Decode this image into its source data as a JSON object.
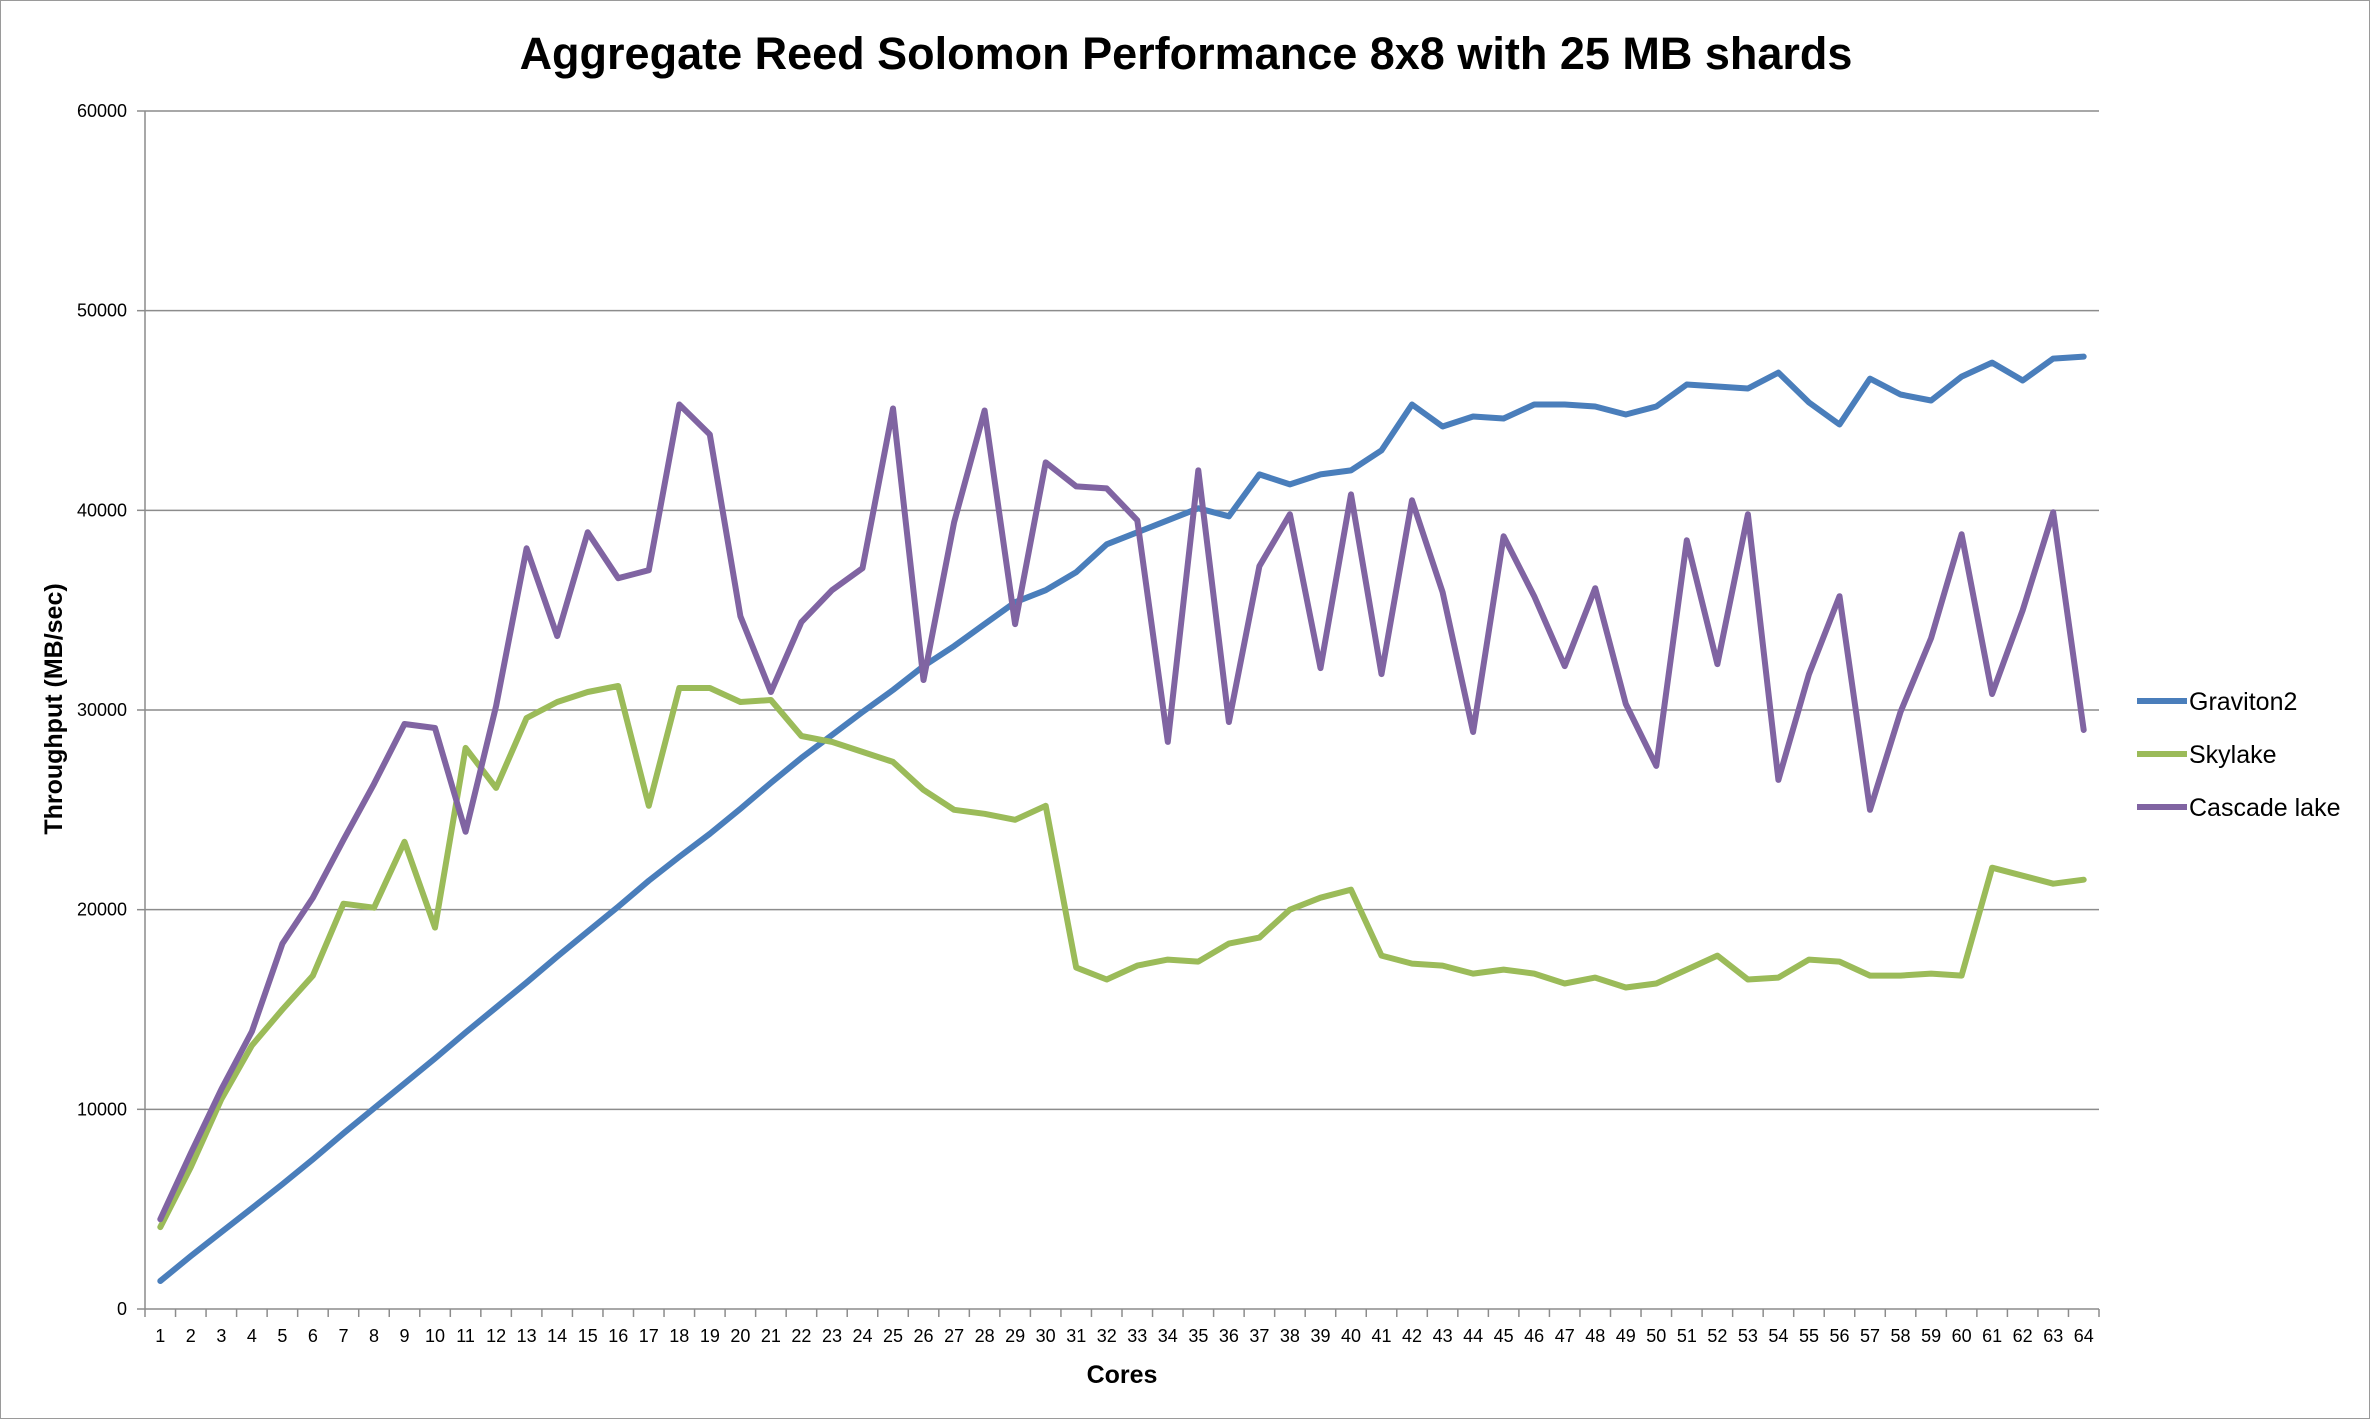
{
  "chart_data": {
    "type": "line",
    "title": "Aggregate Reed Solomon Performance 8x8 with 25 MB shards",
    "xlabel": "Cores",
    "ylabel": "Throughput (MB/sec)",
    "ylim": [
      0,
      60000
    ],
    "yticks": [
      0,
      10000,
      20000,
      30000,
      40000,
      50000,
      60000
    ],
    "grid": true,
    "legend_position": "right",
    "x": [
      1,
      2,
      3,
      4,
      5,
      6,
      7,
      8,
      9,
      10,
      11,
      12,
      13,
      14,
      15,
      16,
      17,
      18,
      19,
      20,
      21,
      22,
      23,
      24,
      25,
      26,
      27,
      28,
      29,
      30,
      31,
      32,
      33,
      34,
      35,
      36,
      37,
      38,
      39,
      40,
      41,
      42,
      43,
      44,
      45,
      46,
      47,
      48,
      49,
      50,
      51,
      52,
      53,
      54,
      55,
      56,
      57,
      58,
      59,
      60,
      61,
      62,
      63,
      64
    ],
    "series": [
      {
        "name": "Graviton2",
        "color": "#4a7ebb",
        "values": [
          1400,
          2650,
          3850,
          5050,
          6250,
          7500,
          8800,
          10050,
          11300,
          12550,
          13850,
          15100,
          16350,
          17650,
          18900,
          20150,
          21450,
          22650,
          23800,
          25050,
          26350,
          27600,
          28750,
          29900,
          31000,
          32200,
          33200,
          34300,
          35400,
          36000,
          36900,
          38300,
          38900,
          39500,
          40100,
          39700,
          41800,
          41300,
          41800,
          42000,
          43000,
          45300,
          44200,
          44700,
          44600,
          45300,
          45300,
          45200,
          44800,
          45200,
          46300,
          46200,
          46100,
          46900,
          45400,
          44300,
          46600,
          45800,
          45500,
          46700,
          47400,
          46500,
          47600,
          47700
        ],
        "values_pos": [
          1300,
          2600,
          3800,
          5000,
          6200,
          7500,
          8800,
          10000,
          11300,
          12500,
          13800,
          15000,
          16300,
          17600,
          18900,
          20100,
          21400,
          22600,
          23700,
          24900,
          26200,
          27500,
          28600,
          29700,
          30800,
          31900,
          33000,
          34100,
          35300,
          36000,
          36900,
          38300,
          38800,
          39400,
          40000,
          39600,
          41800,
          41300,
          41800,
          42000,
          43000,
          45300,
          44200,
          44700,
          44600,
          45300,
          45300,
          45200,
          44800,
          45200,
          46300,
          46200,
          46100,
          46900,
          45400,
          44300,
          46500,
          45800,
          45500,
          46700,
          47300,
          46500,
          47600,
          47700
        ]
      },
      {
        "name": "Skylake",
        "color": "#9bbb59",
        "values": [
          4100,
          7100,
          10500,
          13200,
          15000,
          16700,
          20300,
          20100,
          23400,
          19100,
          28100,
          26100,
          29600,
          30400,
          30900,
          31200,
          25200,
          31100,
          31100,
          30400,
          30500,
          28700,
          28400,
          27900,
          27400,
          26000,
          25000,
          24800,
          24500,
          25200,
          17100,
          16500,
          17200,
          17500,
          17400,
          18300,
          18600,
          20000,
          20600,
          21000,
          17700,
          17300,
          17200,
          16800,
          17000,
          16800,
          16300,
          16600,
          16100,
          16300,
          17000,
          17700,
          16500,
          16600,
          17500,
          17400,
          16700,
          16700,
          16800,
          16700,
          22100,
          21700,
          21300,
          21500
        ]
      },
      {
        "name": "Cascade lake",
        "color": "#8064a2",
        "values": [
          4500,
          7800,
          11000,
          13900,
          18300,
          20600,
          23500,
          26300,
          29300,
          29100,
          23900,
          30200,
          38100,
          33700,
          38900,
          36600,
          37000,
          45300,
          43800,
          34700,
          30900,
          34400,
          36000,
          37100,
          45100,
          31500,
          39400,
          45000,
          34300,
          42400,
          41200,
          41100,
          39500,
          28400,
          42000,
          29400,
          37200,
          39800,
          32100,
          40800,
          31800,
          40500,
          35900,
          28900,
          38700,
          35700,
          32200,
          36100,
          30300,
          27200,
          38500,
          32300,
          39800,
          26500,
          31800,
          35700,
          25000,
          29900,
          33600,
          38800,
          30800,
          35000,
          39900,
          29000
        ]
      }
    ]
  }
}
